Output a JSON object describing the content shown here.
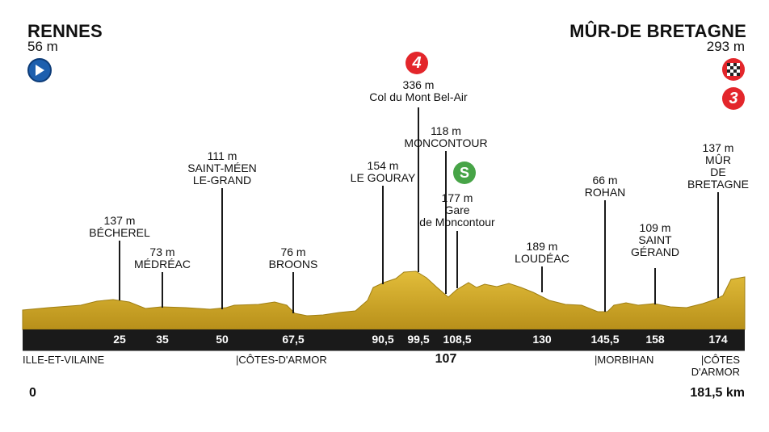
{
  "start": {
    "name": "RENNES",
    "altitude": "56 m"
  },
  "finish": {
    "name": "MÛR-DE BRETAGNE",
    "altitude": "293 m"
  },
  "icons": {
    "start": {
      "name": "play-icon",
      "color": "#1d5fae"
    },
    "finish_flag": {
      "name": "checkered-flag-icon",
      "color": "#e3262b"
    },
    "cat4_climb": {
      "name": "category-4-climb-icon",
      "label": "4",
      "color": "#e3262b"
    },
    "cat3_climb": {
      "name": "category-3-climb-icon",
      "label": "3",
      "color": "#e3262b"
    },
    "sprint": {
      "name": "sprint-icon",
      "label": "S",
      "color": "#47a447"
    }
  },
  "waypoints": [
    {
      "label": "137 m\nBÉCHEREL",
      "km": "25"
    },
    {
      "label": "73 m\nMÉDRÉAC",
      "km": "35"
    },
    {
      "label": "111 m\nSAINT-MÉEN\nLE-GRAND",
      "km": "50"
    },
    {
      "label": "76 m\nBROONS",
      "km": "67,5"
    },
    {
      "label": "154 m\nLE GOURAY",
      "km": "90,5"
    },
    {
      "label": "336 m\nCol du Mont Bel-Air",
      "km": "99,5"
    },
    {
      "label": "118 m\nMONCONTOUR",
      "km": "107"
    },
    {
      "label": "177 m\nGare\nde Moncontour",
      "km": "108,5"
    },
    {
      "label": "189 m\nLOUDÉAC",
      "km": "130"
    },
    {
      "label": "66 m\nROHAN",
      "km": "145,5"
    },
    {
      "label": "109 m\nSAINT\nGÉRAND",
      "km": "158"
    },
    {
      "label": "137 m\nMÛR\nDE\nBRETAGNE",
      "km": "174"
    }
  ],
  "regions": [
    {
      "label": "ILLE-ET-VILAINE"
    },
    {
      "label": "|CÔTES-D'ARMOR"
    },
    {
      "label": "|MORBIHAN"
    },
    {
      "label": "|CÔTES\nD'ARMOR"
    }
  ],
  "distance": {
    "start": "0",
    "total": "181,5 km"
  },
  "colors": {
    "terrain": "#c9a227",
    "terrain_dark": "#8a6d10",
    "band": "#1a1a1a"
  }
}
